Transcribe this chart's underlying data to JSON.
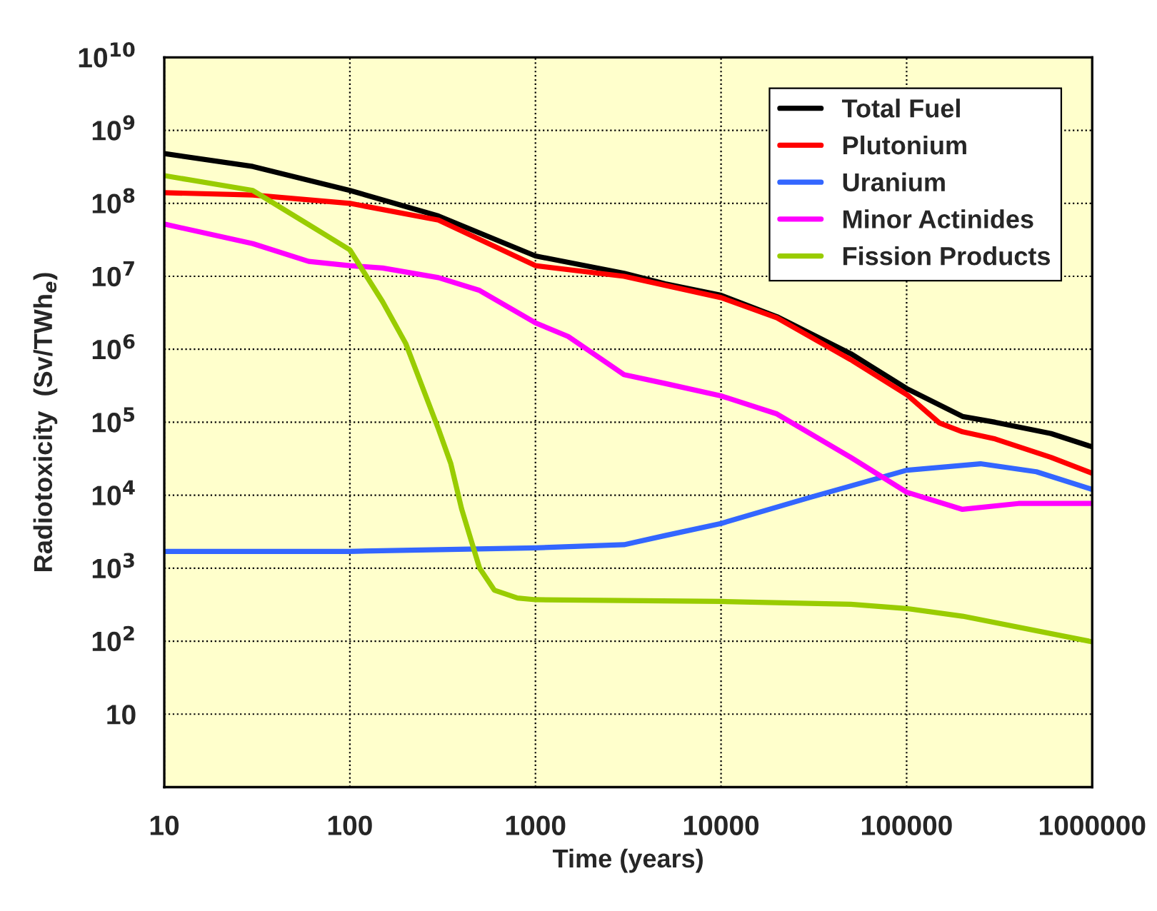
{
  "chart_data": {
    "type": "line",
    "xlabel": "Time (years)",
    "ylabel": "Radiotoxicity  (Sv/TWh$_{e}$)",
    "log": "xy",
    "grid": true,
    "legend": "top right",
    "xlim": [
      10,
      1000000
    ],
    "xticks": [
      10,
      100,
      1000,
      10000,
      100000,
      1000000
    ],
    "ylim": [
      1,
      10000000000
    ],
    "yticks": [
      {
        "value": 1,
        "label": null
      },
      10,
      {
        "value": 100,
        "label": "10$^{2}$"
      },
      {
        "value": 1000,
        "label": "10$^{3}$"
      },
      {
        "value": 10000,
        "label": "10$^{4}$"
      },
      {
        "value": 100000,
        "label": "10$^{5}$"
      },
      {
        "value": 1000000,
        "label": "10$^{6}$"
      },
      {
        "value": 10000000,
        "label": "10$^{7}$"
      },
      {
        "value": 100000000,
        "label": "10$^{8}$"
      },
      {
        "value": 1000000000,
        "label": "10$^{9}$"
      },
      {
        "value": 10000000000,
        "label": "10$^{10}$"
      }
    ],
    "series": [
      {
        "name": "Total Fuel",
        "color": "#000000",
        "x": [
          10,
          30,
          100,
          300,
          1000,
          3000,
          5000,
          10000,
          20000,
          50000,
          100000,
          200000,
          300000,
          600000,
          1000000
        ],
        "values": [
          480000000,
          320000000,
          150000000,
          67000000,
          19000000,
          11000000,
          7900000,
          5500000,
          2800000,
          870000,
          290000,
          120000,
          100000,
          70000,
          46000
        ]
      },
      {
        "name": "Plutonium",
        "color": "#ff0000",
        "x": [
          10,
          30,
          100,
          300,
          1000,
          3000,
          10000,
          20000,
          50000,
          100000,
          150000,
          200000,
          300000,
          600000,
          1000000
        ],
        "values": [
          140000000,
          130000000,
          100000000,
          59000000,
          14000000,
          10000000,
          5100000,
          2700000,
          720000,
          240000,
          98000,
          74000,
          59000,
          33000,
          20000
        ]
      },
      {
        "name": "Uranium",
        "color": "#3366ff",
        "x": [
          10,
          100,
          1000,
          3000,
          5000,
          10000,
          30000,
          100000,
          250000,
          500000,
          1000000
        ],
        "values": [
          1700,
          1700,
          1900,
          2100,
          2800,
          4100,
          9300,
          22000,
          27000,
          21000,
          12000
        ]
      },
      {
        "name": "Minor Actinides",
        "color": "#ff00ff",
        "x": [
          10,
          30,
          60,
          100,
          150,
          300,
          500,
          1000,
          1500,
          3000,
          5000,
          10000,
          20000,
          50000,
          100000,
          200000,
          400000,
          1000000
        ],
        "values": [
          52000000,
          28000000,
          16000000,
          14000000,
          13000000,
          9600000,
          6400000,
          2300000,
          1500000,
          450000,
          340000,
          230000,
          130000,
          33000,
          11000,
          6400,
          7700,
          7700
        ]
      },
      {
        "name": "Fission Products",
        "color": "#99cc00",
        "x": [
          10,
          30,
          60,
          100,
          150,
          200,
          300,
          350,
          400,
          500,
          600,
          800,
          1000,
          10000,
          50000,
          100000,
          200000,
          1000000
        ],
        "values": [
          240000000,
          150000000,
          51000000,
          23000000,
          4500000,
          1200000,
          81000,
          27000,
          6500,
          1000,
          500,
          390,
          370,
          350,
          320,
          280,
          220,
          98
        ]
      }
    ]
  }
}
